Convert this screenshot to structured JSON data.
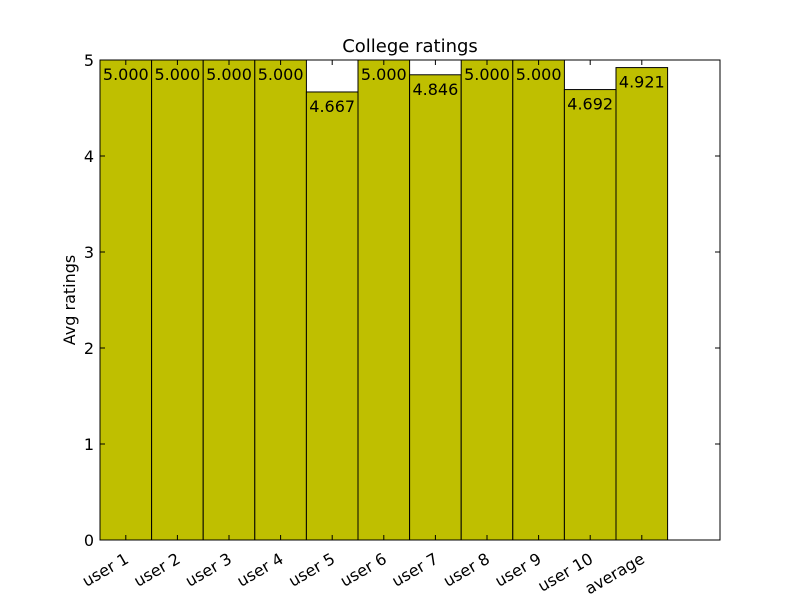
{
  "chart_data": {
    "type": "bar",
    "title": "College ratings",
    "xlabel": "",
    "ylabel": "Avg ratings",
    "ylim": [
      0,
      5
    ],
    "yticks": [
      0,
      1,
      2,
      3,
      4,
      5
    ],
    "categories": [
      "user 1",
      "user 2",
      "user 3",
      "user 4",
      "user 5",
      "user 6",
      "user 7",
      "user 8",
      "user 9",
      "user 10",
      "average"
    ],
    "values": [
      5.0,
      5.0,
      5.0,
      5.0,
      4.667,
      5.0,
      4.846,
      5.0,
      5.0,
      4.692,
      4.921
    ],
    "value_labels": [
      "5.000",
      "5.000",
      "5.000",
      "5.000",
      "4.667",
      "5.000",
      "4.846",
      "5.000",
      "5.000",
      "4.692",
      "4.921"
    ],
    "bar_color": "#bfbf00",
    "grid": false,
    "xtick_rotation": "30 degrees"
  }
}
